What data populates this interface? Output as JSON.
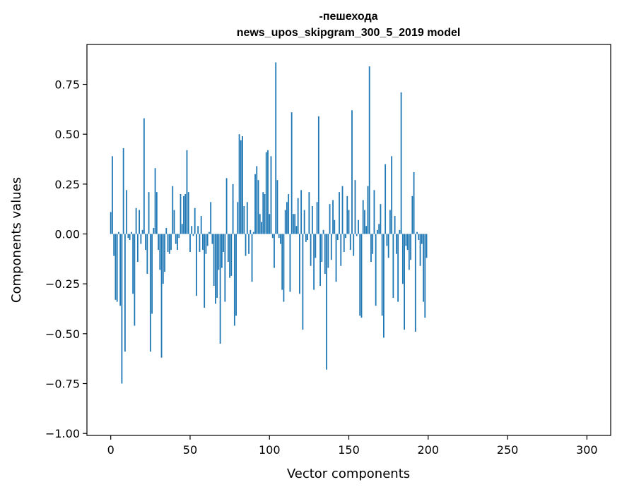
{
  "chart_data": {
    "type": "bar",
    "title": "-пешехода",
    "subtitle": "news_upos_skipgram_300_5_2019 model",
    "xlabel": "Vector components",
    "ylabel": "Components values",
    "xlim": [
      -15,
      315
    ],
    "ylim": [
      -1.01,
      0.95
    ],
    "xticks": [
      0,
      50,
      100,
      150,
      200,
      250,
      300
    ],
    "xtick_labels": [
      "0",
      "50",
      "100",
      "150",
      "200",
      "250",
      "300"
    ],
    "yticks": [
      -1.0,
      -0.75,
      -0.5,
      -0.25,
      0.0,
      0.25,
      0.5,
      0.75
    ],
    "ytick_labels": [
      "−1.00",
      "−0.75",
      "−0.50",
      "−0.25",
      "0.00",
      "0.25",
      "0.50",
      "0.75"
    ],
    "bar_color": "#1f77b4",
    "grid": false,
    "legend": "none",
    "values": [
      0.11,
      0.39,
      -0.11,
      -0.33,
      -0.34,
      0.01,
      -0.36,
      -0.75,
      0.43,
      -0.59,
      0.22,
      -0.02,
      -0.03,
      0.01,
      -0.3,
      -0.46,
      0.13,
      -0.14,
      0.12,
      -0.05,
      0.02,
      0.58,
      -0.08,
      -0.2,
      0.21,
      -0.59,
      -0.4,
      0.03,
      0.33,
      0.21,
      -0.08,
      -0.18,
      -0.62,
      -0.25,
      -0.19,
      0.03,
      -0.09,
      -0.1,
      -0.08,
      0.24,
      0.12,
      -0.05,
      -0.08,
      -0.02,
      0.2,
      0.05,
      0.19,
      0.2,
      0.42,
      0.21,
      -0.09,
      0.04,
      -0.01,
      0.13,
      -0.31,
      0.04,
      -0.09,
      0.09,
      -0.08,
      -0.37,
      -0.1,
      -0.06,
      0.01,
      0.16,
      -0.05,
      -0.26,
      -0.35,
      -0.32,
      -0.18,
      -0.55,
      -0.17,
      -0.09,
      -0.34,
      0.28,
      -0.14,
      -0.22,
      -0.21,
      0.25,
      -0.46,
      -0.41,
      0.16,
      0.5,
      0.47,
      0.49,
      0.14,
      -0.11,
      0.16,
      -0.1,
      0.02,
      -0.24,
      0.01,
      0.3,
      0.34,
      0.27,
      0.1,
      0.06,
      0.21,
      0.2,
      0.41,
      0.42,
      0.1,
      0.39,
      -0.02,
      -0.17,
      0.86,
      0.27,
      -0.02,
      -0.05,
      -0.28,
      -0.34,
      0.12,
      0.16,
      0.2,
      -0.29,
      0.61,
      0.1,
      0.1,
      0.04,
      0.18,
      -0.3,
      0.22,
      -0.48,
      0.12,
      -0.04,
      -0.03,
      0.21,
      -0.16,
      0.14,
      -0.28,
      -0.12,
      0.16,
      0.59,
      -0.26,
      -0.14,
      0.02,
      -0.2,
      -0.68,
      -0.17,
      0.15,
      -0.13,
      0.17,
      0.07,
      -0.24,
      -0.03,
      0.21,
      -0.16,
      0.24,
      -0.09,
      -0.02,
      0.19,
      0.12,
      -0.08,
      0.62,
      -0.11,
      0.27,
      -0.01,
      0.07,
      -0.41,
      -0.42,
      0.17,
      0.12,
      0.04,
      0.24,
      0.84,
      -0.14,
      -0.1,
      0.22,
      -0.36,
      0.02,
      0.05,
      0.15,
      -0.41,
      -0.52,
      0.35,
      -0.06,
      -0.12,
      0.12,
      0.39,
      -0.32,
      0.09,
      -0.1,
      -0.34,
      0.02,
      0.71,
      -0.25,
      -0.48,
      -0.06,
      -0.08,
      -0.18,
      -0.13,
      0.19,
      0.31,
      -0.49,
      0.01,
      -0.03,
      -0.16,
      -0.05,
      -0.34,
      -0.42,
      -0.12
    ]
  }
}
